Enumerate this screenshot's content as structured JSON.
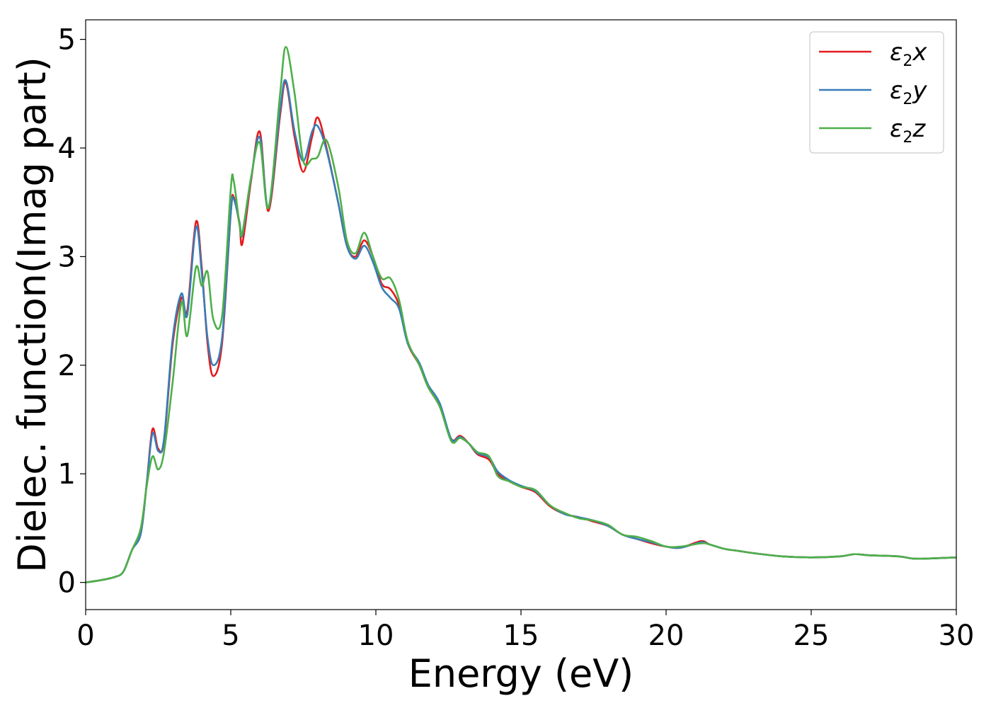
{
  "chart_data": {
    "type": "line",
    "xlabel": "Energy (eV)",
    "ylabel": "Dielec. function(Imag part)",
    "xlim": [
      0,
      30
    ],
    "ylim": [
      -0.25,
      5.18
    ],
    "xticks": [
      0,
      5,
      10,
      15,
      20,
      25,
      30
    ],
    "yticks": [
      0,
      1,
      2,
      3,
      4,
      5
    ],
    "grid": false,
    "legend_position": "top-right",
    "series": [
      {
        "name": "ε2x",
        "legend_main": "ε",
        "legend_sub": "2",
        "legend_tail": "x",
        "color": "#e41a1c",
        "points": [
          [
            0,
            0
          ],
          [
            0.5,
            0.02
          ],
          [
            1,
            0.05
          ],
          [
            1.3,
            0.1
          ],
          [
            1.6,
            0.3
          ],
          [
            1.9,
            0.45
          ],
          [
            2.1,
            0.9
          ],
          [
            2.3,
            1.41
          ],
          [
            2.5,
            1.23
          ],
          [
            2.7,
            1.3
          ],
          [
            3.0,
            2.2
          ],
          [
            3.3,
            2.62
          ],
          [
            3.5,
            2.5
          ],
          [
            3.8,
            3.32
          ],
          [
            4.0,
            2.9
          ],
          [
            4.2,
            2.2
          ],
          [
            4.4,
            1.9
          ],
          [
            4.7,
            2.2
          ],
          [
            5.0,
            3.4
          ],
          [
            5.1,
            3.55
          ],
          [
            5.3,
            3.3
          ],
          [
            5.4,
            3.12
          ],
          [
            5.7,
            3.7
          ],
          [
            6.0,
            4.15
          ],
          [
            6.3,
            3.42
          ],
          [
            6.7,
            4.3
          ],
          [
            6.9,
            4.6
          ],
          [
            7.2,
            4.1
          ],
          [
            7.5,
            3.78
          ],
          [
            7.8,
            4.1
          ],
          [
            8.0,
            4.28
          ],
          [
            8.3,
            4.0
          ],
          [
            8.7,
            3.5
          ],
          [
            9.0,
            3.1
          ],
          [
            9.3,
            3.0
          ],
          [
            9.6,
            3.15
          ],
          [
            9.9,
            3.0
          ],
          [
            10.2,
            2.75
          ],
          [
            10.5,
            2.7
          ],
          [
            10.8,
            2.55
          ],
          [
            11.1,
            2.2
          ],
          [
            11.5,
            2.0
          ],
          [
            11.8,
            1.8
          ],
          [
            12.2,
            1.62
          ],
          [
            12.6,
            1.32
          ],
          [
            12.9,
            1.35
          ],
          [
            13.2,
            1.28
          ],
          [
            13.5,
            1.18
          ],
          [
            13.9,
            1.13
          ],
          [
            14.2,
            1.0
          ],
          [
            14.6,
            0.93
          ],
          [
            15.0,
            0.88
          ],
          [
            15.5,
            0.83
          ],
          [
            16.0,
            0.7
          ],
          [
            16.5,
            0.63
          ],
          [
            17.0,
            0.6
          ],
          [
            17.5,
            0.56
          ],
          [
            18.0,
            0.52
          ],
          [
            18.5,
            0.44
          ],
          [
            19.0,
            0.4
          ],
          [
            19.5,
            0.36
          ],
          [
            20.0,
            0.33
          ],
          [
            20.5,
            0.32
          ],
          [
            21.2,
            0.38
          ],
          [
            21.5,
            0.35
          ],
          [
            22.0,
            0.31
          ],
          [
            22.5,
            0.29
          ],
          [
            23.0,
            0.27
          ],
          [
            24.0,
            0.24
          ],
          [
            25.0,
            0.23
          ],
          [
            26.0,
            0.24
          ],
          [
            26.5,
            0.26
          ],
          [
            27.0,
            0.25
          ],
          [
            28.0,
            0.24
          ],
          [
            28.5,
            0.22
          ],
          [
            29.0,
            0.22
          ],
          [
            30.0,
            0.23
          ]
        ]
      },
      {
        "name": "ε2y",
        "legend_main": "ε",
        "legend_sub": "2",
        "legend_tail": "y",
        "color": "#377eb8",
        "points": [
          [
            0,
            0
          ],
          [
            0.5,
            0.02
          ],
          [
            1,
            0.05
          ],
          [
            1.3,
            0.1
          ],
          [
            1.6,
            0.3
          ],
          [
            1.9,
            0.45
          ],
          [
            2.1,
            0.9
          ],
          [
            2.3,
            1.37
          ],
          [
            2.5,
            1.21
          ],
          [
            2.7,
            1.32
          ],
          [
            3.0,
            2.25
          ],
          [
            3.3,
            2.66
          ],
          [
            3.5,
            2.46
          ],
          [
            3.8,
            3.27
          ],
          [
            4.0,
            2.85
          ],
          [
            4.2,
            2.25
          ],
          [
            4.4,
            2.0
          ],
          [
            4.7,
            2.25
          ],
          [
            5.0,
            3.4
          ],
          [
            5.1,
            3.53
          ],
          [
            5.3,
            3.32
          ],
          [
            5.4,
            3.2
          ],
          [
            5.7,
            3.72
          ],
          [
            6.0,
            4.1
          ],
          [
            6.3,
            3.45
          ],
          [
            6.7,
            4.35
          ],
          [
            6.9,
            4.62
          ],
          [
            7.2,
            4.15
          ],
          [
            7.5,
            3.88
          ],
          [
            7.8,
            4.15
          ],
          [
            8.0,
            4.2
          ],
          [
            8.3,
            3.98
          ],
          [
            8.7,
            3.5
          ],
          [
            9.0,
            3.1
          ],
          [
            9.3,
            2.98
          ],
          [
            9.6,
            3.1
          ],
          [
            9.9,
            2.95
          ],
          [
            10.2,
            2.72
          ],
          [
            10.5,
            2.62
          ],
          [
            10.8,
            2.52
          ],
          [
            11.1,
            2.2
          ],
          [
            11.5,
            2.02
          ],
          [
            11.8,
            1.82
          ],
          [
            12.2,
            1.65
          ],
          [
            12.6,
            1.32
          ],
          [
            12.9,
            1.34
          ],
          [
            13.2,
            1.28
          ],
          [
            13.5,
            1.19
          ],
          [
            13.9,
            1.15
          ],
          [
            14.2,
            1.02
          ],
          [
            14.6,
            0.94
          ],
          [
            15.0,
            0.89
          ],
          [
            15.5,
            0.84
          ],
          [
            16.0,
            0.71
          ],
          [
            16.5,
            0.63
          ],
          [
            17.0,
            0.6
          ],
          [
            17.5,
            0.57
          ],
          [
            18.0,
            0.52
          ],
          [
            18.5,
            0.44
          ],
          [
            19.0,
            0.4
          ],
          [
            19.5,
            0.37
          ],
          [
            20.0,
            0.33
          ],
          [
            20.5,
            0.32
          ],
          [
            21.2,
            0.37
          ],
          [
            21.5,
            0.35
          ],
          [
            22.0,
            0.31
          ],
          [
            22.5,
            0.29
          ],
          [
            23.0,
            0.27
          ],
          [
            24.0,
            0.24
          ],
          [
            25.0,
            0.23
          ],
          [
            26.0,
            0.24
          ],
          [
            26.5,
            0.26
          ],
          [
            27.0,
            0.25
          ],
          [
            28.0,
            0.24
          ],
          [
            28.5,
            0.22
          ],
          [
            29.0,
            0.22
          ],
          [
            30.0,
            0.23
          ]
        ]
      },
      {
        "name": "ε2z",
        "legend_main": "ε",
        "legend_sub": "2",
        "legend_tail": "z",
        "color": "#4daf4a",
        "points": [
          [
            0,
            0
          ],
          [
            0.5,
            0.02
          ],
          [
            1,
            0.05
          ],
          [
            1.3,
            0.1
          ],
          [
            1.6,
            0.3
          ],
          [
            1.9,
            0.5
          ],
          [
            2.1,
            0.88
          ],
          [
            2.3,
            1.16
          ],
          [
            2.5,
            1.04
          ],
          [
            2.7,
            1.2
          ],
          [
            3.0,
            1.85
          ],
          [
            3.3,
            2.58
          ],
          [
            3.5,
            2.27
          ],
          [
            3.8,
            2.9
          ],
          [
            4.0,
            2.73
          ],
          [
            4.2,
            2.86
          ],
          [
            4.4,
            2.42
          ],
          [
            4.7,
            2.45
          ],
          [
            5.0,
            3.62
          ],
          [
            5.1,
            3.7
          ],
          [
            5.3,
            3.3
          ],
          [
            5.4,
            3.22
          ],
          [
            5.7,
            3.73
          ],
          [
            6.0,
            4.05
          ],
          [
            6.3,
            3.45
          ],
          [
            6.7,
            4.5
          ],
          [
            6.9,
            4.93
          ],
          [
            7.2,
            4.5
          ],
          [
            7.5,
            3.88
          ],
          [
            7.8,
            3.9
          ],
          [
            8.0,
            3.92
          ],
          [
            8.3,
            4.07
          ],
          [
            8.7,
            3.65
          ],
          [
            9.0,
            3.15
          ],
          [
            9.3,
            3.03
          ],
          [
            9.6,
            3.22
          ],
          [
            9.9,
            3.0
          ],
          [
            10.2,
            2.8
          ],
          [
            10.5,
            2.8
          ],
          [
            10.8,
            2.6
          ],
          [
            11.1,
            2.22
          ],
          [
            11.5,
            2.0
          ],
          [
            11.8,
            1.8
          ],
          [
            12.2,
            1.62
          ],
          [
            12.6,
            1.3
          ],
          [
            12.9,
            1.33
          ],
          [
            13.2,
            1.28
          ],
          [
            13.5,
            1.2
          ],
          [
            13.9,
            1.16
          ],
          [
            14.2,
            0.98
          ],
          [
            14.6,
            0.93
          ],
          [
            15.0,
            0.88
          ],
          [
            15.5,
            0.85
          ],
          [
            16.0,
            0.71
          ],
          [
            16.5,
            0.64
          ],
          [
            17.0,
            0.59
          ],
          [
            17.5,
            0.57
          ],
          [
            18.0,
            0.53
          ],
          [
            18.5,
            0.44
          ],
          [
            19.0,
            0.42
          ],
          [
            19.5,
            0.38
          ],
          [
            20.0,
            0.33
          ],
          [
            20.5,
            0.33
          ],
          [
            21.2,
            0.36
          ],
          [
            21.5,
            0.35
          ],
          [
            22.0,
            0.31
          ],
          [
            22.5,
            0.29
          ],
          [
            23.0,
            0.27
          ],
          [
            24.0,
            0.24
          ],
          [
            25.0,
            0.23
          ],
          [
            26.0,
            0.24
          ],
          [
            26.5,
            0.26
          ],
          [
            27.0,
            0.25
          ],
          [
            28.0,
            0.24
          ],
          [
            28.5,
            0.22
          ],
          [
            29.0,
            0.22
          ],
          [
            30.0,
            0.23
          ]
        ]
      }
    ]
  }
}
